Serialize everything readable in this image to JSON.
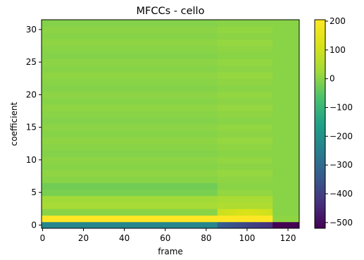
{
  "chart_data": {
    "type": "heatmap",
    "title": "MFCCs - cello",
    "xlabel": "frame",
    "ylabel": "coefficient",
    "colormap": "viridis",
    "colorbar_range": [
      -520,
      205
    ],
    "x_range": [
      0,
      126
    ],
    "y_range": [
      0,
      32
    ],
    "x_ticks": [
      "0",
      "20",
      "40",
      "60",
      "80",
      "100",
      "120"
    ],
    "y_ticks": [
      "0",
      "5",
      "10",
      "15",
      "20",
      "25",
      "30"
    ],
    "colorbar_ticks": [
      "200",
      "100",
      "0",
      "−100",
      "−200",
      "−300",
      "−400",
      "−500"
    ],
    "colorbar_tick_values": [
      200,
      100,
      0,
      -100,
      -200,
      -300,
      -400,
      -500
    ],
    "frames": 126,
    "coefficients": 32,
    "approx_values": {
      "background": 0,
      "coefficient_0_frames_0_85": -230,
      "coefficient_0_frames_86_112": -330,
      "coefficient_0_frames_113_125": -520,
      "coefficient_1_frames_0_112": 205,
      "coefficient_1_frames_113_125": 5,
      "coefficient_2_frames_86_112": 120,
      "coefficients_3_4_frames_0_85": 30,
      "coefficient_5_6_frames_0_85": -20
    }
  }
}
